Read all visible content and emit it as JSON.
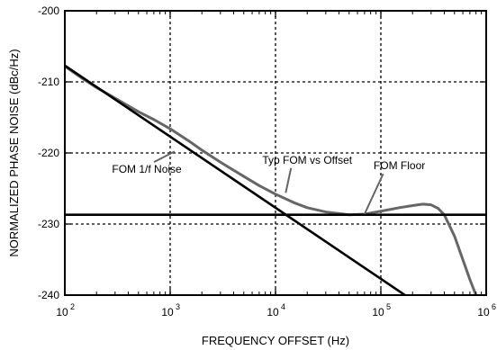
{
  "chart_data": {
    "type": "line",
    "title": "",
    "xlabel": "FREQUENCY OFFSET (Hz)",
    "ylabel": "NORMALIZED PHASE NOISE (dBc/Hz)",
    "x_scale": "log",
    "xlim": [
      100,
      1000000
    ],
    "ylim": [
      -240,
      -200
    ],
    "x_ticks": [
      100,
      1000,
      10000,
      100000,
      1000000
    ],
    "x_tick_bases": [
      "10",
      "10",
      "10",
      "10",
      "10"
    ],
    "x_tick_exps": [
      "2",
      "3",
      "4",
      "5",
      "6"
    ],
    "y_ticks": [
      -200,
      -210,
      -220,
      -230,
      -240
    ],
    "y_tick_labels": [
      "-200",
      "-210",
      "-220",
      "-230",
      "-240"
    ],
    "grid": true,
    "series": [
      {
        "name": "Typ FOM vs Offset",
        "color": "#666666",
        "x": [
          100,
          150,
          200,
          300,
          500,
          700,
          1000,
          1500,
          2000,
          3000,
          5000,
          7000,
          10000,
          15000,
          20000,
          30000,
          50000,
          70000,
          100000,
          150000,
          200000,
          250000,
          300000,
          350000,
          400000,
          500000,
          600000,
          700000,
          800000
        ],
        "y": [
          -207.8,
          -209.6,
          -210.8,
          -212.3,
          -214.2,
          -215.3,
          -216.6,
          -218.3,
          -219.6,
          -221.3,
          -223.3,
          -224.6,
          -225.8,
          -227.0,
          -227.7,
          -228.3,
          -228.7,
          -228.6,
          -228.2,
          -227.7,
          -227.4,
          -227.2,
          -227.3,
          -227.8,
          -228.7,
          -231.7,
          -235.0,
          -237.8,
          -240.0
        ]
      },
      {
        "name": "FOM 1/f Noise",
        "color": "#000000",
        "x": [
          100,
          500000
        ],
        "y": [
          -207.7,
          -244.7
        ]
      },
      {
        "name": "FOM Floor",
        "color": "#000000",
        "x": [
          100,
          1000000
        ],
        "y": [
          -228.7,
          -228.7
        ]
      }
    ],
    "annotations": [
      {
        "text": "Typ FOM vs Offset",
        "x": 20000,
        "y": -221.5,
        "arrow_to": [
          12500,
          -225.6
        ]
      },
      {
        "text": "FOM 1/f Noise",
        "x": 600,
        "y": -222.8,
        "arrow_to": [
          1100,
          -219.8
        ]
      },
      {
        "text": "FOM Floor",
        "x": 150000,
        "y": -222.3,
        "arrow_to": [
          70000,
          -228.6
        ]
      }
    ]
  }
}
